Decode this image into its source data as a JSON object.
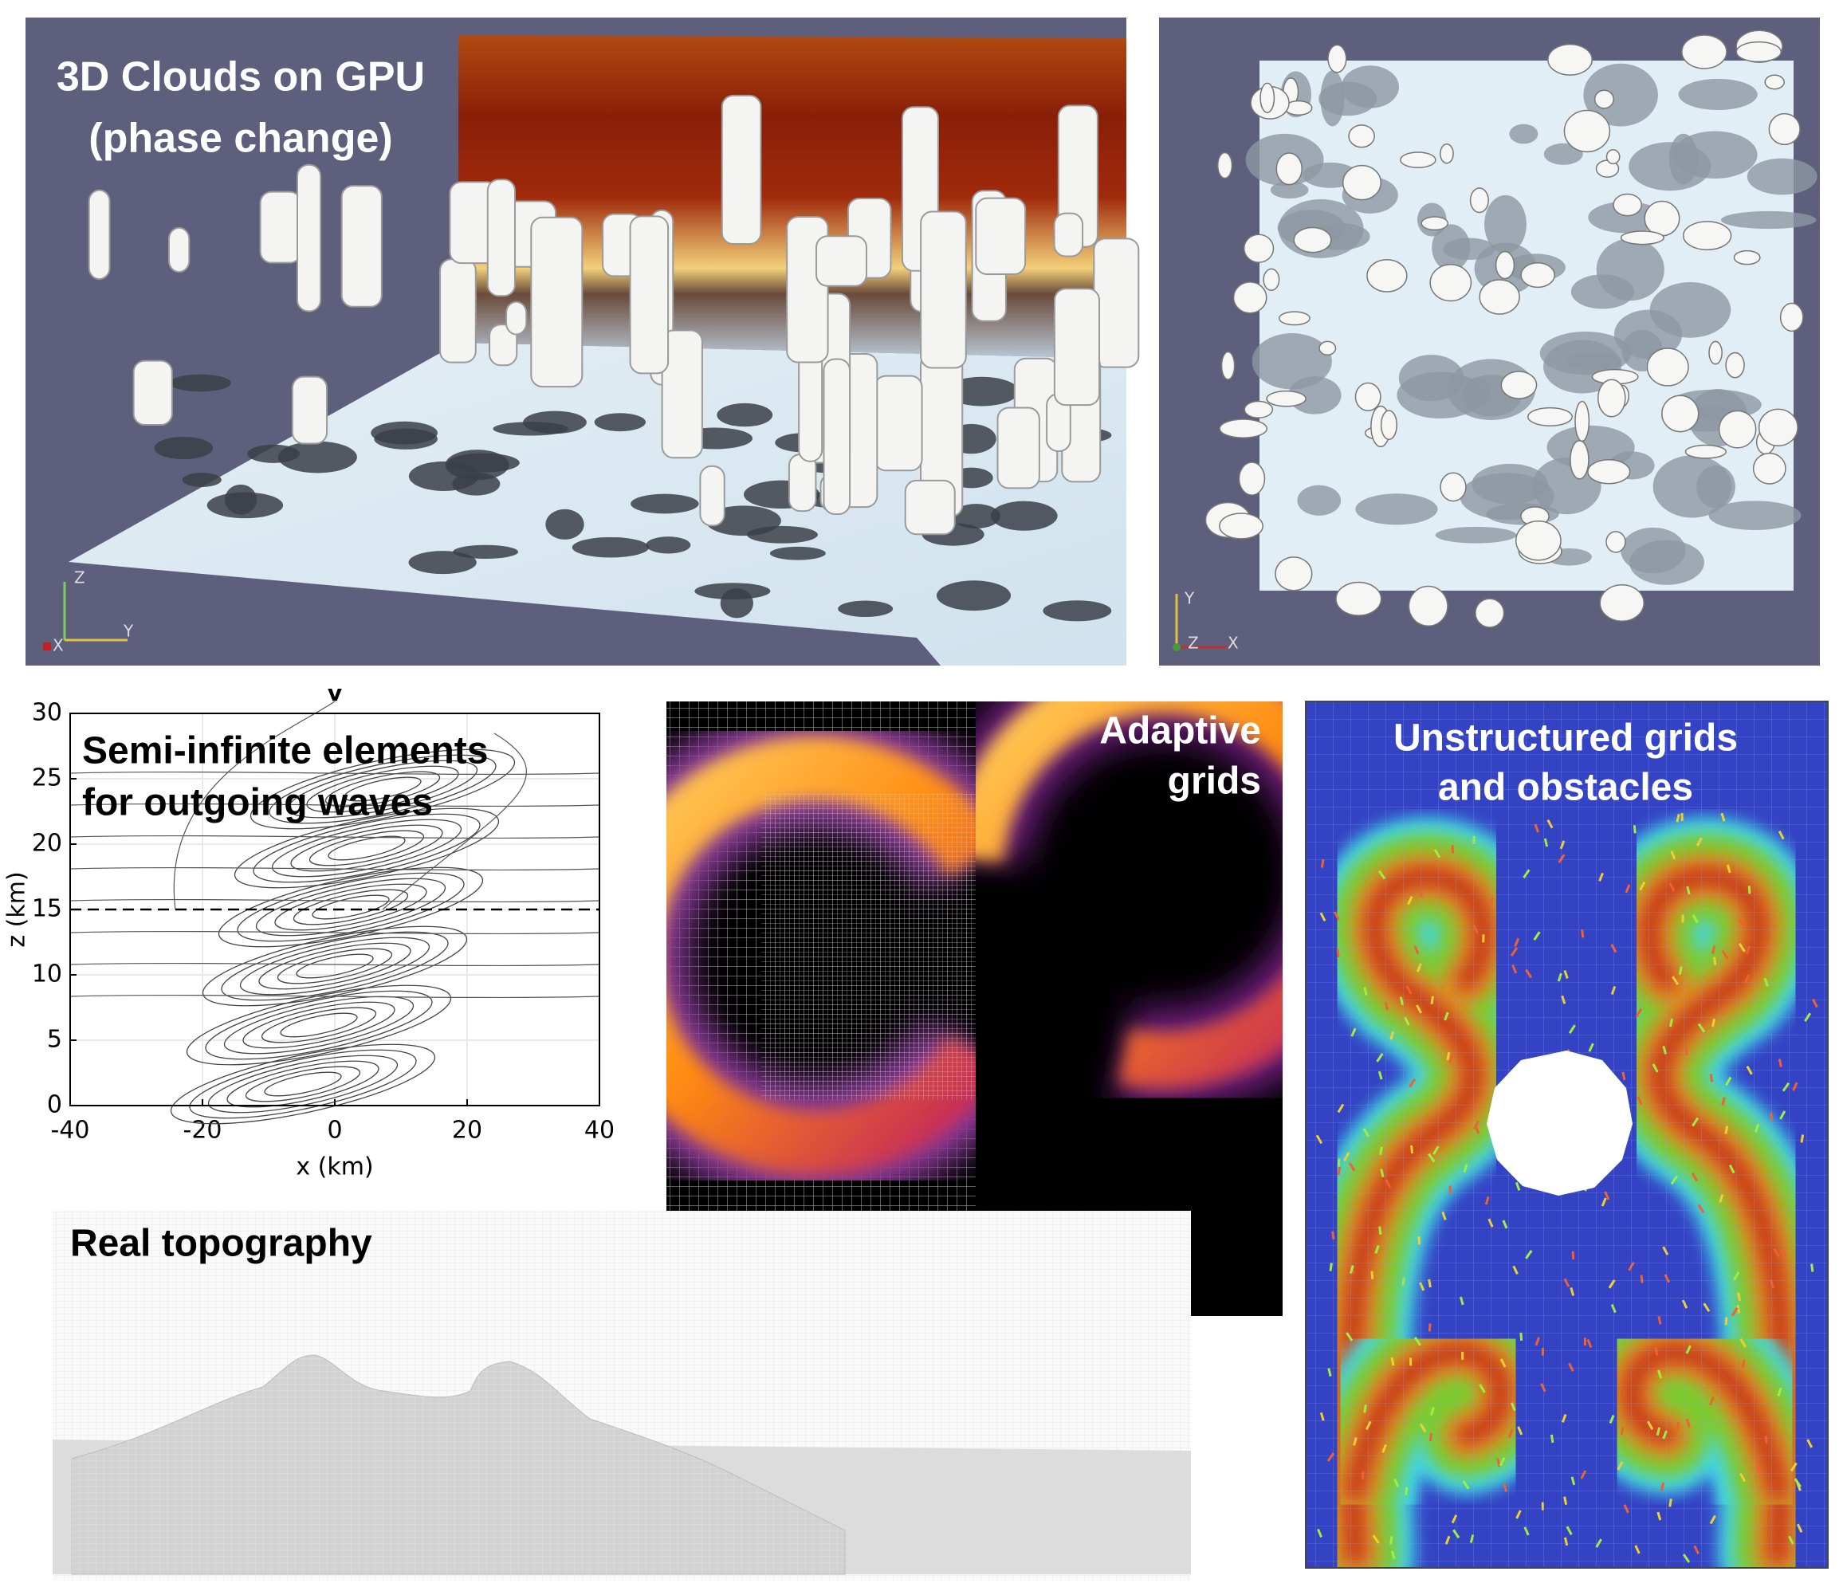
{
  "clouds_3d": {
    "title": [
      "3D Clouds on GPU",
      "(phase change)"
    ],
    "axes": [
      "Z",
      "X",
      "Y"
    ]
  },
  "clouds_top": {
    "axes": [
      "Y",
      "Z",
      "X"
    ]
  },
  "wave_plot": {
    "title": [
      "Semi-infinite elements",
      "for outgoing waves"
    ],
    "top_label": "v",
    "xlabel": "x (km)",
    "ylabel": "z (km)",
    "xlim": [
      -40,
      40
    ],
    "ylim": [
      0,
      30
    ],
    "xticks": [
      -40,
      -20,
      0,
      20,
      40
    ],
    "yticks": [
      0,
      5,
      10,
      15,
      20,
      25,
      30
    ],
    "dashed_z": 15
  },
  "adaptive": {
    "title": [
      "Adaptive",
      "grids"
    ]
  },
  "unstructured": {
    "title": [
      "Unstructured grids",
      "and obstacles"
    ]
  },
  "topography": {
    "title": "Real topography"
  }
}
